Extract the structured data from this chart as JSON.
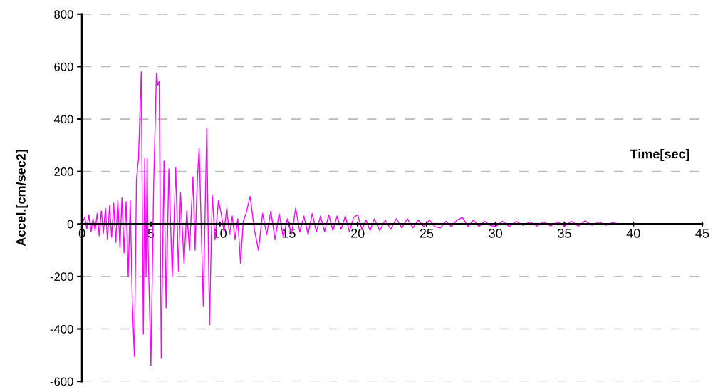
{
  "chart_data": {
    "type": "line",
    "xlabel": "Time[sec]",
    "ylabel": "Accel.[cm/sec2]",
    "xlim": [
      0,
      45
    ],
    "ylim": [
      -600,
      800
    ],
    "xticks": [
      0,
      5,
      10,
      15,
      20,
      25,
      30,
      35,
      40,
      45
    ],
    "yticks": [
      -600,
      -400,
      -200,
      0,
      200,
      400,
      600,
      800
    ],
    "grid": "y",
    "marker": "none",
    "line_style": "solid",
    "legend": false,
    "series": [
      {
        "color": "#ff00ff",
        "x": [
          0,
          0.2,
          0.35,
          0.5,
          0.65,
          0.8,
          0.95,
          1.1,
          1.25,
          1.4,
          1.55,
          1.7,
          1.85,
          2.0,
          2.15,
          2.3,
          2.45,
          2.6,
          2.75,
          2.9,
          3.05,
          3.2,
          3.35,
          3.5,
          3.65,
          3.8,
          3.95,
          4.1,
          4.3,
          4.45,
          4.55,
          4.65,
          4.72,
          4.8,
          5.0,
          5.2,
          5.4,
          5.5,
          5.6,
          5.75,
          5.95,
          6.1,
          6.3,
          6.55,
          6.8,
          7.0,
          7.15,
          7.4,
          7.6,
          7.8,
          8.05,
          8.2,
          8.35,
          8.5,
          8.8,
          9.05,
          9.25,
          9.45,
          9.65,
          9.9,
          10.1,
          10.3,
          10.5,
          10.7,
          10.9,
          11.1,
          11.3,
          11.5,
          11.7,
          11.9,
          12.2,
          12.5,
          12.8,
          13.1,
          13.4,
          13.7,
          14.0,
          14.3,
          14.6,
          14.9,
          15.2,
          15.5,
          15.8,
          16.1,
          16.4,
          16.7,
          17.0,
          17.3,
          17.6,
          17.9,
          18.2,
          18.5,
          18.8,
          19.1,
          19.4,
          19.7,
          20.0,
          20.3,
          20.6,
          20.9,
          21.2,
          21.6,
          22.0,
          22.4,
          22.8,
          23.2,
          23.6,
          24.0,
          24.4,
          24.8,
          25.2,
          25.6,
          26.0,
          26.4,
          26.8,
          27.2,
          27.6,
          28.0,
          28.4,
          28.8,
          29.2,
          29.6,
          30.0,
          30.5,
          31.0,
          31.5,
          32.0,
          32.5,
          33.0,
          33.5,
          34.0,
          34.5,
          35.0,
          35.5,
          36.0,
          36.5,
          37.0,
          37.5,
          38.0,
          38.5,
          39.0
        ],
        "values": [
          0,
          25,
          -20,
          35,
          -30,
          20,
          -25,
          40,
          -45,
          50,
          -35,
          60,
          -60,
          70,
          -50,
          80,
          -70,
          90,
          -90,
          100,
          -110,
          85,
          -200,
          90,
          -300,
          -505,
          170,
          250,
          580,
          -420,
          250,
          -200,
          250,
          -100,
          -540,
          150,
          575,
          530,
          545,
          -510,
          240,
          -320,
          210,
          -200,
          215,
          -180,
          120,
          -150,
          50,
          -100,
          180,
          -100,
          150,
          290,
          -315,
          365,
          -385,
          110,
          -60,
          90,
          40,
          -30,
          60,
          -40,
          30,
          -60,
          20,
          -150,
          10,
          40,
          105,
          -20,
          -100,
          40,
          -40,
          50,
          -60,
          40,
          -50,
          20,
          -40,
          60,
          -30,
          30,
          -40,
          40,
          -30,
          30,
          -30,
          35,
          -25,
          30,
          -20,
          30,
          -30,
          25,
          35,
          -20,
          15,
          -25,
          20,
          -25,
          15,
          -20,
          20,
          -15,
          20,
          -15,
          15,
          -10,
          15,
          -10,
          -15,
          10,
          -10,
          15,
          25,
          -10,
          15,
          -10,
          10,
          -5,
          -10,
          10,
          -10,
          10,
          -5,
          8,
          -8,
          8,
          -8,
          8,
          -8,
          10,
          -8,
          12,
          -5,
          8,
          -5,
          5,
          0
        ]
      }
    ]
  }
}
